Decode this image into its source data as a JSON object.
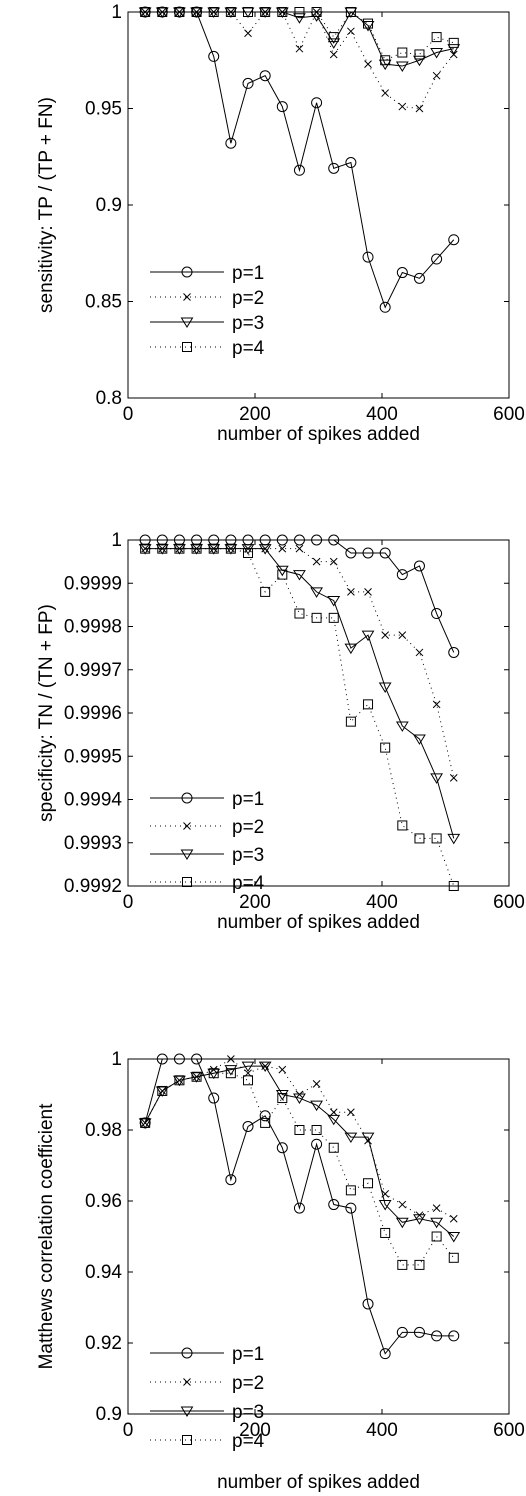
{
  "chart_data": [
    {
      "type": "line",
      "title": "",
      "xlabel": "number of spikes added",
      "ylabel": "sensitivity: TP / (TP + FN)",
      "xlim": [
        0,
        600
      ],
      "ylim": [
        0.8,
        1
      ],
      "xticks": [
        "0",
        "200",
        "400",
        "600"
      ],
      "yticks": [
        "0.8",
        "0.85",
        "0.9",
        "0.95",
        "1"
      ],
      "grid": false,
      "legend_position": "bottom-left",
      "x": [
        27,
        54,
        81,
        108,
        135,
        162,
        189,
        216,
        243,
        270,
        297,
        324,
        351,
        378,
        405,
        432,
        459,
        486,
        513
      ],
      "series": [
        {
          "name": "p=1",
          "line": "solid",
          "marker": "circle",
          "values": [
            1,
            1,
            1,
            1,
            0.977,
            0.932,
            0.963,
            0.967,
            0.951,
            0.918,
            0.953,
            0.919,
            0.922,
            0.873,
            0.847,
            0.865,
            0.862,
            0.872,
            0.882
          ]
        },
        {
          "name": "p=2",
          "line": "dotted",
          "marker": "x",
          "values": [
            1,
            1,
            1,
            1,
            1,
            1,
            0.989,
            1,
            1,
            0.981,
            1,
            0.978,
            0.99,
            0.973,
            0.958,
            0.951,
            0.95,
            0.967,
            0.978
          ]
        },
        {
          "name": "p=3",
          "line": "solid",
          "marker": "triangle-down",
          "values": [
            1,
            1,
            1,
            1,
            1,
            1,
            1,
            1,
            1,
            0.997,
            0.998,
            0.984,
            1,
            0.993,
            0.973,
            0.972,
            0.975,
            0.979,
            0.981
          ]
        },
        {
          "name": "p=4",
          "line": "dotted",
          "marker": "square",
          "values": [
            1,
            1,
            1,
            1,
            1,
            1,
            1,
            1,
            1,
            1,
            1,
            0.987,
            1,
            0.994,
            0.975,
            0.979,
            0.978,
            0.987,
            0.984
          ]
        }
      ]
    },
    {
      "type": "line",
      "title": "",
      "xlabel": "number of spikes added",
      "ylabel": "specificity: TN / (TN + FP)",
      "xlim": [
        0,
        600
      ],
      "ylim": [
        0.9992,
        1
      ],
      "xticks": [
        "0",
        "200",
        "400",
        "600"
      ],
      "yticks": [
        "0.9992",
        "0.9993",
        "0.9994",
        "0.9995",
        "0.9996",
        "0.9997",
        "0.9998",
        "0.9999",
        "1"
      ],
      "grid": false,
      "legend_position": "bottom-left",
      "x": [
        27,
        54,
        81,
        108,
        135,
        162,
        189,
        216,
        243,
        270,
        297,
        324,
        351,
        378,
        405,
        432,
        459,
        486,
        513
      ],
      "series": [
        {
          "name": "p=1",
          "line": "solid",
          "marker": "circle",
          "values": [
            1.0,
            1.0,
            1.0,
            1.0,
            1.0,
            1.0,
            1.0,
            1.0,
            1.0,
            1.0,
            1.0,
            1.0,
            0.99997,
            0.99997,
            0.99997,
            0.99992,
            0.99994,
            0.99983,
            0.99974
          ]
        },
        {
          "name": "p=2",
          "line": "dotted",
          "marker": "x",
          "values": [
            0.99998,
            0.99998,
            0.99998,
            0.99998,
            0.99998,
            0.99998,
            0.99998,
            0.99998,
            0.99998,
            0.99998,
            0.99995,
            0.99995,
            0.99988,
            0.99988,
            0.99978,
            0.99978,
            0.99974,
            0.99962,
            0.99945
          ]
        },
        {
          "name": "p=3",
          "line": "solid",
          "marker": "triangle-down",
          "values": [
            0.99998,
            0.99998,
            0.99998,
            0.99998,
            0.99998,
            0.99998,
            0.99998,
            0.99998,
            0.99993,
            0.99992,
            0.99988,
            0.99986,
            0.99975,
            0.99978,
            0.99966,
            0.99957,
            0.99954,
            0.99945,
            0.99931
          ]
        },
        {
          "name": "p=4",
          "line": "dotted",
          "marker": "square",
          "values": [
            0.99998,
            0.99998,
            0.99998,
            0.99998,
            0.99998,
            0.99998,
            0.99997,
            0.99988,
            0.99992,
            0.99983,
            0.99982,
            0.99982,
            0.99958,
            0.99962,
            0.99952,
            0.99934,
            0.99931,
            0.99931,
            0.9992
          ]
        }
      ]
    },
    {
      "type": "line",
      "title": "",
      "xlabel": "number of spikes added",
      "ylabel": "Matthews correlation coefficient",
      "xlim": [
        0,
        600
      ],
      "ylim": [
        0.9,
        1
      ],
      "xticks": [
        "0",
        "200",
        "400",
        "600"
      ],
      "yticks": [
        "0.9",
        "0.92",
        "0.94",
        "0.96",
        "0.98",
        "1"
      ],
      "grid": false,
      "legend_position": "bottom-left",
      "x": [
        27,
        54,
        81,
        108,
        135,
        162,
        189,
        216,
        243,
        270,
        297,
        324,
        351,
        378,
        405,
        432,
        459,
        486,
        513
      ],
      "series": [
        {
          "name": "p=1",
          "line": "solid",
          "marker": "circle",
          "values": [
            0.982,
            1.0,
            1.0,
            1.0,
            0.989,
            0.966,
            0.981,
            0.984,
            0.975,
            0.958,
            0.976,
            0.959,
            0.958,
            0.931,
            0.917,
            0.923,
            0.923,
            0.922,
            0.922
          ]
        },
        {
          "name": "p=2",
          "line": "dotted",
          "marker": "x",
          "values": [
            0.982,
            0.991,
            0.994,
            0.995,
            0.997,
            1.0,
            0.996,
            0.998,
            0.997,
            0.99,
            0.993,
            0.985,
            0.985,
            0.977,
            0.962,
            0.959,
            0.956,
            0.958,
            0.955
          ]
        },
        {
          "name": "p=3",
          "line": "solid",
          "marker": "triangle-down",
          "values": [
            0.982,
            0.991,
            0.994,
            0.995,
            0.996,
            0.997,
            0.998,
            0.998,
            0.99,
            0.989,
            0.987,
            0.983,
            0.978,
            0.978,
            0.959,
            0.954,
            0.955,
            0.954,
            0.95
          ]
        },
        {
          "name": "p=4",
          "line": "dotted",
          "marker": "square",
          "values": [
            0.982,
            0.991,
            0.994,
            0.995,
            0.996,
            0.996,
            0.994,
            0.982,
            0.989,
            0.98,
            0.98,
            0.975,
            0.963,
            0.965,
            0.951,
            0.942,
            0.942,
            0.95,
            0.944
          ]
        }
      ]
    }
  ]
}
